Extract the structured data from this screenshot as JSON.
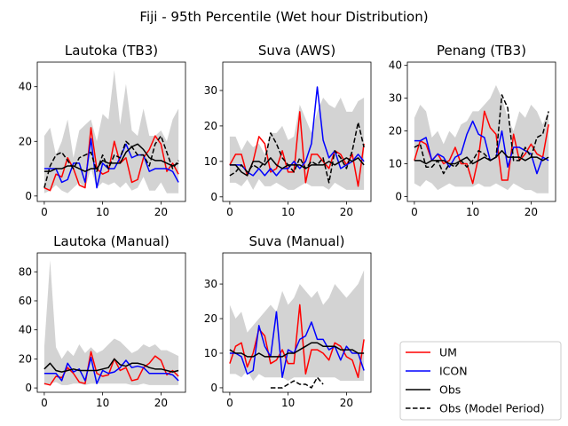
{
  "figure": {
    "title": "Fiji - 95th Percentile (Wet hour Distribution)"
  },
  "legend": {
    "placement": "lower-right",
    "entries": [
      {
        "label": "UM",
        "color": "#ff0000",
        "dashed": false
      },
      {
        "label": "ICON",
        "color": "#0000ff",
        "dashed": false
      },
      {
        "label": "Obs",
        "color": "#000000",
        "dashed": false
      },
      {
        "label": "Obs (Model Period)",
        "color": "#000000",
        "dashed": true
      }
    ]
  },
  "chart_data": [
    {
      "type": "line",
      "title": "Lautoka (TB3)",
      "xlabel": "",
      "ylabel": "",
      "xlim": [
        -1.2,
        24.2
      ],
      "ylim": [
        -2,
        49
      ],
      "xticks": [
        0,
        10,
        20
      ],
      "yticks": [
        0,
        20,
        40
      ],
      "grid": false,
      "x": [
        0,
        1,
        2,
        3,
        4,
        5,
        6,
        7,
        8,
        9,
        10,
        11,
        12,
        13,
        14,
        15,
        16,
        17,
        18,
        19,
        20,
        21,
        22,
        23
      ],
      "band": {
        "color": "#d3d3d3",
        "upper": [
          22,
          25,
          15,
          20,
          28,
          14,
          24,
          26,
          28,
          20,
          30,
          28,
          46,
          26,
          41,
          24,
          22,
          32,
          22,
          22,
          24,
          20,
          28,
          32
        ],
        "lower": [
          1,
          2,
          4,
          2,
          1,
          3,
          5,
          3,
          10,
          3,
          5,
          4,
          5,
          3,
          5,
          2,
          3,
          7,
          2,
          2,
          5,
          1,
          1,
          1
        ]
      },
      "series": [
        {
          "name": "UM",
          "color": "#ff0000",
          "dashed": false,
          "values": [
            3,
            2,
            8,
            7,
            14,
            10,
            4,
            3,
            25,
            10,
            8,
            9,
            20,
            12,
            14,
            5,
            6,
            14,
            17,
            22,
            19,
            9,
            12,
            8
          ]
        },
        {
          "name": "ICON",
          "color": "#0000ff",
          "dashed": false,
          "values": [
            10,
            10,
            10,
            5,
            6,
            12,
            12,
            5,
            21,
            3,
            12,
            10,
            10,
            14,
            19,
            14,
            15,
            15,
            9,
            10,
            10,
            10,
            9,
            5
          ]
        },
        {
          "name": "Obs",
          "color": "#000000",
          "dashed": false,
          "values": [
            9,
            9,
            10,
            10,
            11,
            11,
            10,
            9,
            10,
            10,
            13,
            12,
            12,
            12,
            16,
            18,
            19,
            17,
            14,
            13,
            13,
            12,
            11,
            12
          ]
        },
        {
          "name": "Obs (Model Period)",
          "color": "#000000",
          "dashed": true,
          "values": [
            3,
            11,
            15,
            16,
            13,
            10,
            14,
            15,
            16,
            9,
            15,
            10,
            15,
            14,
            20,
            18,
            15,
            15,
            11,
            19,
            22,
            16,
            10,
            13
          ]
        }
      ]
    },
    {
      "type": "line",
      "title": "Suva (AWS)",
      "xlabel": "",
      "ylabel": "",
      "xlim": [
        -1.2,
        24.2
      ],
      "ylim": [
        -1.3,
        38
      ],
      "xticks": [
        0,
        10,
        20
      ],
      "yticks": [
        0,
        10,
        20,
        30
      ],
      "grid": false,
      "x": [
        0,
        1,
        2,
        3,
        4,
        5,
        6,
        7,
        8,
        9,
        10,
        11,
        12,
        13,
        14,
        15,
        16,
        17,
        18,
        19,
        20,
        21,
        22,
        23
      ],
      "band": {
        "color": "#d3d3d3",
        "upper": [
          17,
          17,
          13,
          16,
          14,
          15,
          12,
          18,
          18,
          20,
          16,
          17,
          26,
          22,
          18,
          24,
          28,
          26,
          25,
          28,
          24,
          24,
          27,
          28
        ],
        "lower": [
          4,
          4,
          3,
          5,
          2,
          5,
          3,
          3,
          4,
          3,
          2,
          2,
          3,
          4,
          3,
          3,
          3,
          2,
          4,
          3,
          2,
          2,
          2,
          2
        ]
      },
      "series": [
        {
          "name": "UM",
          "color": "#ff0000",
          "dashed": false,
          "values": [
            9,
            12,
            12,
            6,
            10,
            17,
            15,
            7,
            8,
            13,
            7,
            7,
            24,
            4,
            12,
            12,
            10,
            8,
            13,
            12,
            9,
            12,
            3,
            15
          ]
        },
        {
          "name": "ICON",
          "color": "#0000ff",
          "dashed": false,
          "values": [
            9,
            9,
            9,
            7,
            6,
            8,
            6,
            8,
            6,
            8,
            8,
            10,
            8,
            10,
            15,
            31,
            16,
            11,
            13,
            8,
            9,
            10,
            12,
            10
          ]
        },
        {
          "name": "Obs",
          "color": "#000000",
          "dashed": false,
          "values": [
            9,
            9,
            7,
            6,
            10,
            10,
            9,
            11,
            9,
            8,
            9,
            9,
            9,
            8,
            9,
            9,
            9,
            10,
            9,
            10,
            11,
            10,
            11,
            9
          ]
        },
        {
          "name": "Obs (Model Period)",
          "color": "#000000",
          "dashed": true,
          "values": [
            6,
            7,
            9,
            7,
            9,
            8,
            10,
            18,
            15,
            11,
            9,
            7,
            11,
            8,
            10,
            9,
            11,
            4,
            13,
            11,
            8,
            13,
            21,
            14
          ]
        }
      ]
    },
    {
      "type": "line",
      "title": "Penang (TB3)",
      "xlabel": "",
      "ylabel": "",
      "xlim": [
        -1.2,
        24.2
      ],
      "ylim": [
        -1.5,
        41
      ],
      "xticks": [
        0,
        10,
        20
      ],
      "yticks": [
        0,
        10,
        20,
        30,
        40
      ],
      "grid": false,
      "x": [
        0,
        1,
        2,
        3,
        4,
        5,
        6,
        7,
        8,
        9,
        10,
        11,
        12,
        13,
        14,
        15,
        16,
        17,
        18,
        19,
        20,
        21,
        22,
        23
      ],
      "band": {
        "color": "#d3d3d3",
        "upper": [
          24,
          28,
          26,
          18,
          20,
          16,
          20,
          18,
          22,
          23,
          26,
          26,
          28,
          30,
          34,
          30,
          24,
          20,
          26,
          24,
          28,
          26,
          22,
          26
        ],
        "lower": [
          4,
          3,
          5,
          4,
          2,
          3,
          4,
          3,
          3,
          3,
          3,
          4,
          3,
          3,
          4,
          3,
          2,
          4,
          3,
          2,
          2,
          1,
          1,
          1
        ]
      },
      "series": [
        {
          "name": "UM",
          "color": "#ff0000",
          "dashed": false,
          "values": [
            11,
            17,
            16,
            11,
            13,
            10,
            11,
            15,
            10,
            10,
            4,
            12,
            26,
            21,
            19,
            5,
            5,
            19,
            11,
            13,
            16,
            13,
            12,
            22
          ]
        },
        {
          "name": "ICON",
          "color": "#0000ff",
          "dashed": false,
          "values": [
            17,
            17,
            18,
            11,
            13,
            12,
            9,
            12,
            13,
            19,
            23,
            19,
            18,
            11,
            12,
            20,
            9,
            15,
            15,
            14,
            13,
            7,
            12,
            11
          ]
        },
        {
          "name": "Obs",
          "color": "#000000",
          "dashed": false,
          "values": [
            11,
            11,
            10,
            11,
            11,
            11,
            10,
            10,
            11,
            12,
            10,
            11,
            12,
            11,
            12,
            14,
            12,
            12,
            12,
            11,
            12,
            12,
            11,
            12
          ]
        },
        {
          "name": "Obs (Model Period)",
          "color": "#000000",
          "dashed": true,
          "values": [
            15,
            16,
            9,
            9,
            11,
            7,
            10,
            9,
            11,
            9,
            11,
            14,
            13,
            11,
            12,
            31,
            27,
            11,
            11,
            15,
            12,
            18,
            19,
            26
          ]
        }
      ]
    },
    {
      "type": "line",
      "title": "Lautoka (Manual)",
      "xlabel": "",
      "ylabel": "",
      "xlim": [
        -1.2,
        24.2
      ],
      "ylim": [
        -3,
        93
      ],
      "xticks": [
        0,
        10,
        20
      ],
      "yticks": [
        0,
        20,
        40,
        60,
        80
      ],
      "grid": false,
      "x": [
        0,
        1,
        2,
        3,
        4,
        5,
        6,
        7,
        8,
        9,
        10,
        11,
        12,
        13,
        14,
        15,
        16,
        17,
        18,
        19,
        20,
        21,
        22,
        23
      ],
      "band": {
        "color": "#d3d3d3",
        "upper": [
          28,
          88,
          28,
          20,
          26,
          22,
          30,
          24,
          28,
          24,
          26,
          30,
          34,
          32,
          28,
          24,
          26,
          30,
          28,
          30,
          26,
          26,
          24,
          22
        ],
        "lower": [
          2,
          3,
          4,
          2,
          2,
          3,
          3,
          2,
          3,
          3,
          3,
          3,
          3,
          3,
          3,
          2,
          2,
          3,
          2,
          2,
          2,
          2,
          2,
          2
        ]
      },
      "series": [
        {
          "name": "UM",
          "color": "#ff0000",
          "dashed": false,
          "values": [
            3,
            2,
            8,
            7,
            14,
            10,
            4,
            3,
            25,
            10,
            8,
            9,
            20,
            12,
            14,
            5,
            6,
            14,
            17,
            22,
            19,
            9,
            12,
            8
          ]
        },
        {
          "name": "ICON",
          "color": "#0000ff",
          "dashed": false,
          "values": [
            10,
            10,
            10,
            5,
            17,
            11,
            13,
            5,
            21,
            3,
            12,
            10,
            11,
            14,
            19,
            14,
            15,
            14,
            10,
            10,
            10,
            10,
            9,
            5
          ]
        },
        {
          "name": "Obs",
          "color": "#000000",
          "dashed": false,
          "values": [
            13,
            17,
            12,
            11,
            12,
            13,
            12,
            12,
            12,
            12,
            13,
            14,
            20,
            16,
            15,
            17,
            17,
            16,
            14,
            13,
            13,
            12,
            11,
            12
          ]
        }
      ]
    },
    {
      "type": "line",
      "title": "Suva (Manual)",
      "xlabel": "",
      "ylabel": "",
      "xlim": [
        -1.2,
        24.2
      ],
      "ylim": [
        -1.3,
        39
      ],
      "xticks": [
        0,
        10,
        20
      ],
      "yticks": [
        0,
        10,
        20,
        30
      ],
      "grid": false,
      "x": [
        0,
        1,
        2,
        3,
        4,
        5,
        6,
        7,
        8,
        9,
        10,
        11,
        12,
        13,
        14,
        15,
        16,
        17,
        18,
        19,
        20,
        21,
        22,
        23
      ],
      "band": {
        "color": "#d3d3d3",
        "upper": [
          24,
          20,
          22,
          16,
          18,
          20,
          22,
          24,
          22,
          28,
          24,
          26,
          30,
          28,
          26,
          28,
          24,
          26,
          30,
          28,
          26,
          28,
          30,
          34
        ],
        "lower": [
          4,
          4,
          3,
          5,
          2,
          4,
          3,
          3,
          3,
          3,
          2,
          3,
          3,
          3,
          3,
          3,
          3,
          3,
          3,
          2,
          2,
          2,
          2,
          2
        ]
      },
      "series": [
        {
          "name": "UM",
          "color": "#ff0000",
          "dashed": false,
          "values": [
            7,
            12,
            13,
            6,
            10,
            17,
            15,
            7,
            8,
            11,
            7,
            7,
            24,
            4,
            11,
            11,
            10,
            8,
            13,
            12,
            9,
            8,
            3,
            14
          ]
        },
        {
          "name": "ICON",
          "color": "#0000ff",
          "dashed": false,
          "values": [
            10,
            10,
            9,
            4,
            5,
            18,
            12,
            9,
            22,
            3,
            11,
            10,
            14,
            15,
            19,
            14,
            14,
            11,
            12,
            8,
            12,
            10,
            10,
            5
          ]
        },
        {
          "name": "Obs",
          "color": "#000000",
          "dashed": false,
          "values": [
            11,
            10,
            10,
            9,
            9,
            10,
            9,
            9,
            9,
            9,
            10,
            10,
            11,
            12,
            13,
            13,
            12,
            12,
            12,
            11,
            11,
            11,
            10,
            10
          ]
        },
        {
          "name": "Obs (Model Period)",
          "color": "#000000",
          "dashed": true,
          "x": [
            7,
            8,
            9,
            10,
            11,
            12,
            13,
            14,
            15,
            16
          ],
          "values": [
            0,
            0,
            0,
            1,
            2,
            1,
            1,
            0,
            3,
            1
          ]
        }
      ]
    }
  ]
}
